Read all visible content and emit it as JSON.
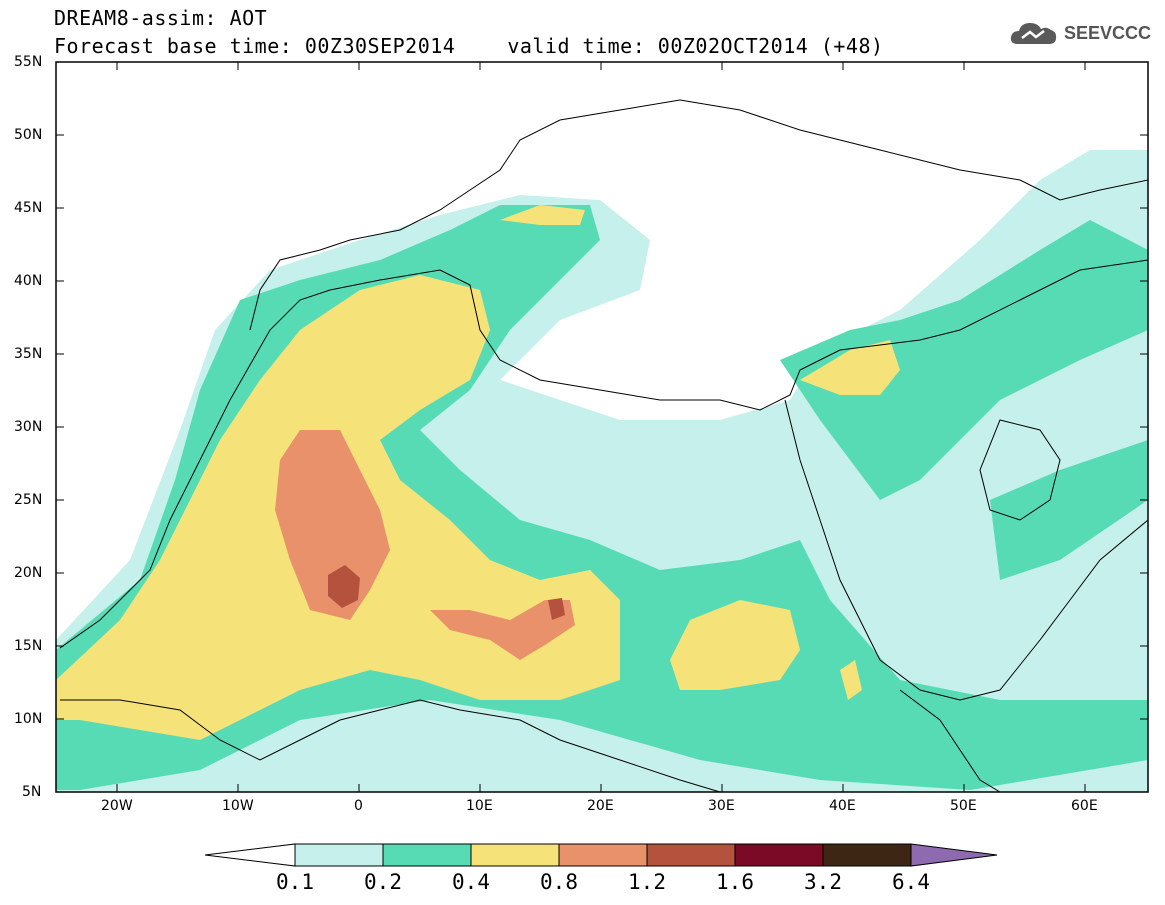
{
  "header": {
    "title_line1": "DREAM8-assim: AOT",
    "base_time": "Forecast base time: 00Z30SEP2014",
    "valid_time": "valid time: 00Z02OCT2014 (+48)",
    "logo_text": "SEEVCCC"
  },
  "map": {
    "projection": "lat-lon",
    "lon_range": [
      -25,
      65
    ],
    "lat_range": [
      5,
      55
    ],
    "lat_labels": [
      "55N",
      "50N",
      "45N",
      "40N",
      "35N",
      "30N",
      "25N",
      "20N",
      "15N",
      "10N",
      "5N"
    ],
    "lon_labels": [
      "20W",
      "10W",
      "0",
      "10E",
      "20E",
      "30E",
      "40E",
      "50E",
      "60E"
    ]
  },
  "colorbar": {
    "labels": [
      "0.1",
      "0.2",
      "0.4",
      "0.8",
      "1.2",
      "1.6",
      "3.2",
      "6.4"
    ],
    "colors": [
      "#c6f0eb",
      "#57dbb4",
      "#f5e37a",
      "#e8916b",
      "#b4523e",
      "#7a0a25",
      "#3d2613",
      "#8e6bb1"
    ]
  }
}
